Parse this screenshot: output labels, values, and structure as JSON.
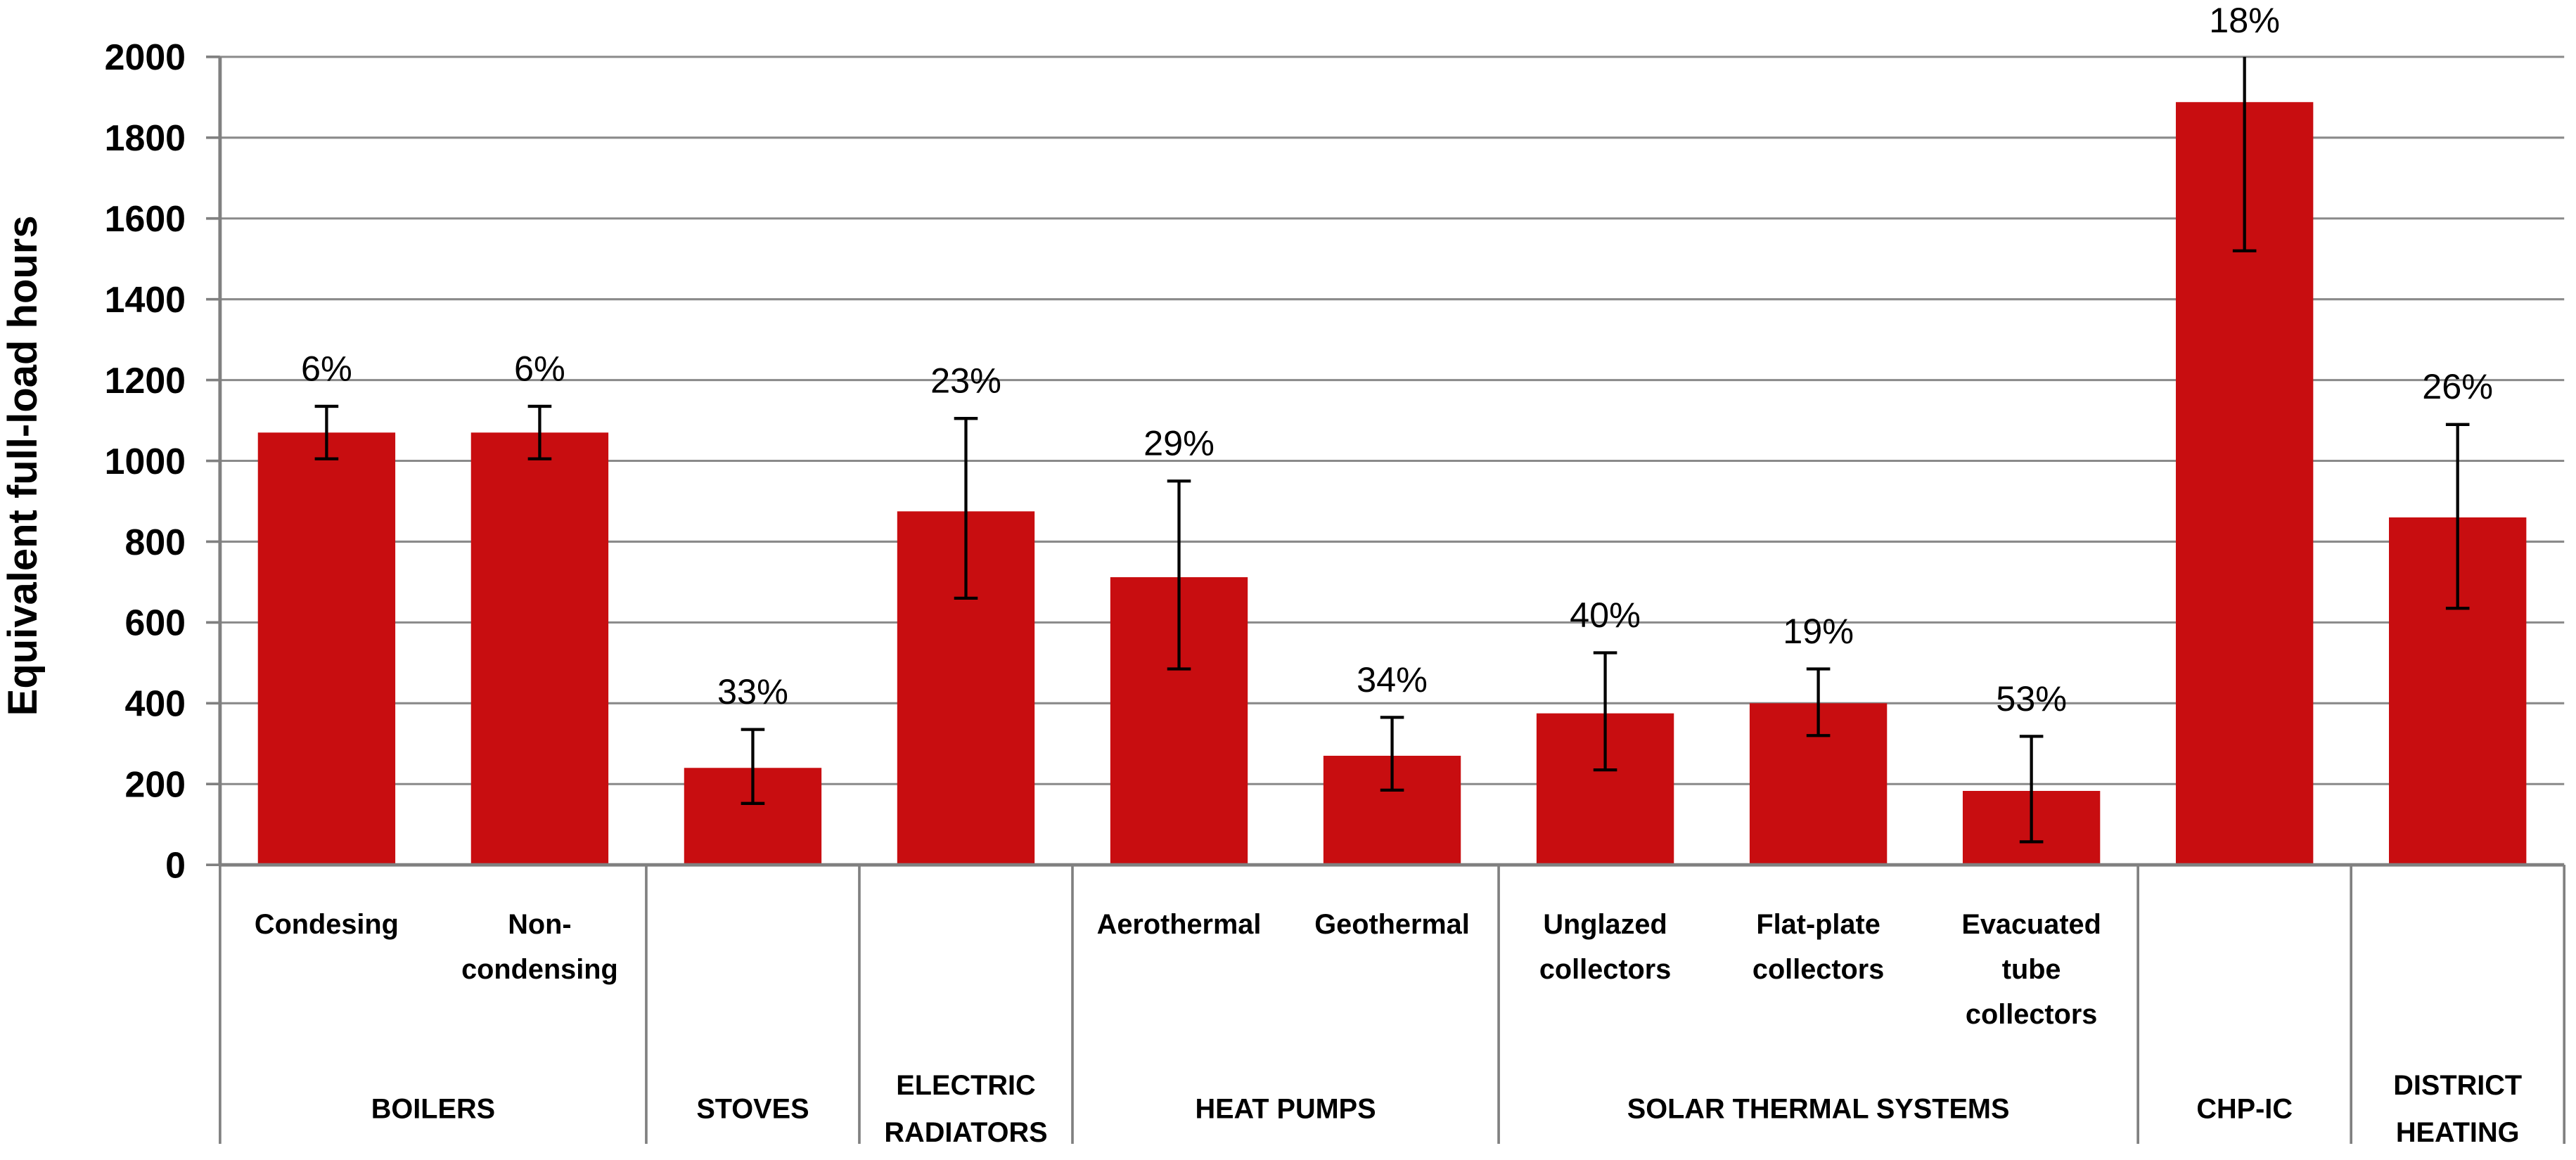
{
  "figure": {
    "background": "#FFFFFF"
  },
  "chart_data": {
    "type": "bar",
    "title": "",
    "xlabel": "",
    "ylabel": "Equivalent full-load hours",
    "ylim": [
      0,
      2000
    ],
    "yticks": [
      0,
      200,
      400,
      600,
      800,
      1000,
      1200,
      1400,
      1600,
      1800,
      2000
    ],
    "grid": true,
    "legend": "none",
    "bar_color": "#C80D10",
    "error_bar_color": "#000000",
    "axis_color": "#808080",
    "gridline_color": "#8A8A8A",
    "value_unit": "hours",
    "annotation_meaning": "percentage uncertainty shown above each error bar",
    "groups": [
      {
        "label_lines": [
          "BOILERS"
        ],
        "bars": [
          {
            "label_lines": [
              "Condesing"
            ],
            "value": 1070,
            "err_low": 1005,
            "err_high": 1135,
            "pct_label": "6%"
          },
          {
            "label_lines": [
              "Non-",
              "condensing"
            ],
            "value": 1070,
            "err_low": 1005,
            "err_high": 1135,
            "pct_label": "6%"
          }
        ]
      },
      {
        "label_lines": [
          "STOVES"
        ],
        "bars": [
          {
            "label_lines": [],
            "value": 240,
            "err_low": 152,
            "err_high": 335,
            "pct_label": "33%"
          }
        ]
      },
      {
        "label_lines": [
          "ELECTRIC",
          "RADIATORS"
        ],
        "bars": [
          {
            "label_lines": [],
            "value": 875,
            "err_low": 660,
            "err_high": 1105,
            "pct_label": "23%"
          }
        ]
      },
      {
        "label_lines": [
          "HEAT PUMPS"
        ],
        "bars": [
          {
            "label_lines": [
              "Aerothermal"
            ],
            "value": 712,
            "err_low": 485,
            "err_high": 950,
            "pct_label": "29%"
          },
          {
            "label_lines": [
              "Geothermal"
            ],
            "value": 270,
            "err_low": 185,
            "err_high": 365,
            "pct_label": "34%"
          }
        ]
      },
      {
        "label_lines": [
          "SOLAR THERMAL SYSTEMS"
        ],
        "bars": [
          {
            "label_lines": [
              "Unglazed",
              "collectors"
            ],
            "value": 375,
            "err_low": 235,
            "err_high": 525,
            "pct_label": "40%"
          },
          {
            "label_lines": [
              "Flat-plate",
              "collectors"
            ],
            "value": 400,
            "err_low": 320,
            "err_high": 485,
            "pct_label": "19%"
          },
          {
            "label_lines": [
              "Evacuated",
              "tube",
              "collectors"
            ],
            "value": 183,
            "err_low": 57,
            "err_high": 318,
            "pct_label": "53%"
          }
        ]
      },
      {
        "label_lines": [
          "CHP-IC"
        ],
        "bars": [
          {
            "label_lines": [],
            "value": 1888,
            "err_low": 1520,
            "err_high": 2228,
            "err_high_clipped": true,
            "pct_label": "18%"
          }
        ]
      },
      {
        "label_lines": [
          "DISTRICT",
          "HEATING"
        ],
        "bars": [
          {
            "label_lines": [],
            "value": 860,
            "err_low": 635,
            "err_high": 1090,
            "pct_label": "26%"
          }
        ]
      }
    ]
  }
}
